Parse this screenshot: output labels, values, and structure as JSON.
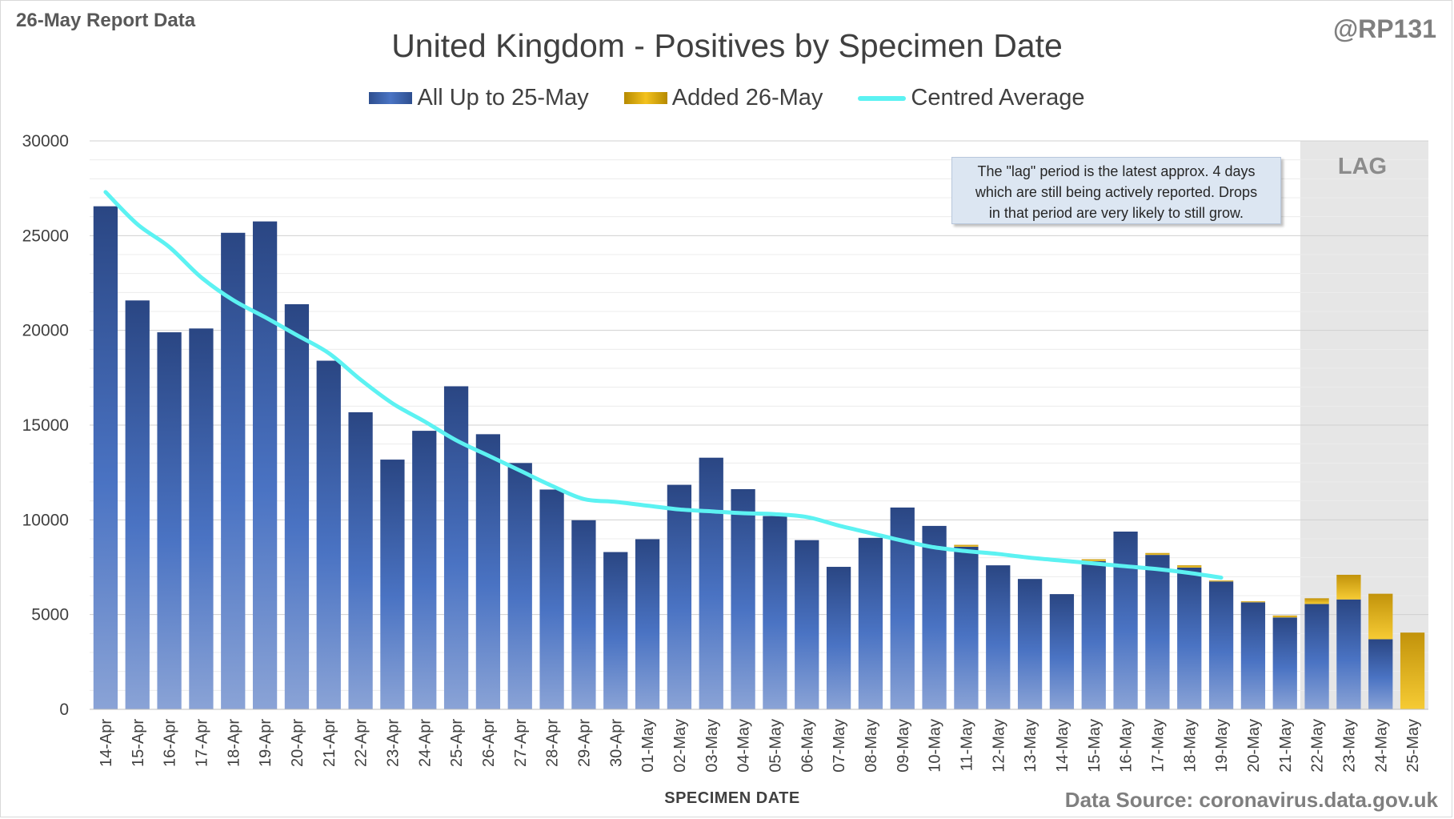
{
  "header": {
    "report_label": "26-May Report Data",
    "handle": "@RP131",
    "data_source": "Data Source: coronavirus.data.gov.uk"
  },
  "colors": {
    "base_bar": "#2e4f8f",
    "added_bar": "#f3c21e",
    "average_line": "#5cf2f2",
    "lag_shade": "#e6e6e6",
    "note_box": "#dce6f2"
  },
  "annotation": {
    "lines": [
      "The \"lag\" period is the latest approx. 4 days",
      "which are still being actively reported.  Drops",
      "in that period are very likely to still grow."
    ],
    "lag_label": "LAG"
  },
  "chart_data": {
    "type": "bar",
    "title": "United Kingdom - Positives by Specimen Date",
    "xlabel": "SPECIMEN DATE",
    "ylabel": "",
    "ylim": [
      0,
      30000
    ],
    "yticks": [
      0,
      5000,
      10000,
      15000,
      20000,
      25000,
      30000
    ],
    "grid": true,
    "stacked": true,
    "legend_position": "top-center",
    "lag_start": "22-May",
    "lag_end": "25-May",
    "categories": [
      "14-Apr",
      "15-Apr",
      "16-Apr",
      "17-Apr",
      "18-Apr",
      "19-Apr",
      "20-Apr",
      "21-Apr",
      "22-Apr",
      "23-Apr",
      "24-Apr",
      "25-Apr",
      "26-Apr",
      "27-Apr",
      "28-Apr",
      "29-Apr",
      "30-Apr",
      "01-May",
      "02-May",
      "03-May",
      "04-May",
      "05-May",
      "06-May",
      "07-May",
      "08-May",
      "09-May",
      "10-May",
      "11-May",
      "12-May",
      "13-May",
      "14-May",
      "15-May",
      "16-May",
      "17-May",
      "18-May",
      "19-May",
      "20-May",
      "21-May",
      "22-May",
      "23-May",
      "24-May",
      "25-May"
    ],
    "series": [
      {
        "name": "All Up to 25-May",
        "kind": "bar",
        "values": [
          26550,
          21580,
          19900,
          20100,
          25150,
          25750,
          21380,
          18400,
          15680,
          13180,
          14700,
          17050,
          14520,
          13000,
          11600,
          9980,
          8300,
          8980,
          11850,
          13280,
          11620,
          10200,
          8930,
          7520,
          9050,
          10650,
          9680,
          8580,
          7600,
          6880,
          6080,
          7820,
          9380,
          8150,
          7480,
          6750,
          5650,
          4850,
          5560,
          5800,
          3700,
          0
        ]
      },
      {
        "name": "Added 26-May",
        "kind": "bar",
        "values": [
          0,
          0,
          0,
          0,
          0,
          0,
          0,
          0,
          0,
          0,
          0,
          0,
          0,
          0,
          0,
          0,
          0,
          0,
          0,
          0,
          0,
          0,
          0,
          0,
          0,
          0,
          0,
          100,
          0,
          0,
          0,
          100,
          0,
          100,
          120,
          50,
          50,
          100,
          300,
          1300,
          2400,
          4050
        ]
      },
      {
        "name": "Centred Average",
        "kind": "line",
        "values": [
          27300,
          25600,
          24400,
          22800,
          21600,
          20700,
          19750,
          18800,
          17400,
          16150,
          15200,
          14200,
          13400,
          12600,
          11800,
          11100,
          10950,
          10750,
          10550,
          10450,
          10350,
          10300,
          10150,
          9700,
          9300,
          8900,
          8550,
          8350,
          8200,
          8000,
          7850,
          7700,
          7550,
          7400,
          7200,
          6950,
          null,
          null,
          null,
          null,
          null,
          null
        ]
      }
    ]
  }
}
